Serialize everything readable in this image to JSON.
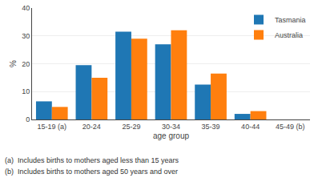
{
  "chart_data": {
    "type": "bar",
    "categories": [
      "15-19 (a)",
      "20-24",
      "25-29",
      "30-34",
      "35-39",
      "40-44",
      "45-49 (b)"
    ],
    "series": [
      {
        "name": "Tasmania",
        "values": [
          6.5,
          19.5,
          31.5,
          27.0,
          12.5,
          2.0,
          0
        ]
      },
      {
        "name": "Australia",
        "values": [
          4.5,
          15.0,
          29.0,
          32.0,
          16.5,
          3.0,
          0
        ]
      }
    ],
    "xlabel": "age group",
    "ylabel": "%",
    "ylim": [
      0,
      40
    ],
    "yticks": [
      0,
      10,
      20,
      30,
      40
    ],
    "grid": true,
    "legend": "upper right",
    "annotations": [
      "(a)  Includes births to mothers aged less than 15 years",
      "(b)  Includes births to mothers aged 50 years and over"
    ]
  }
}
